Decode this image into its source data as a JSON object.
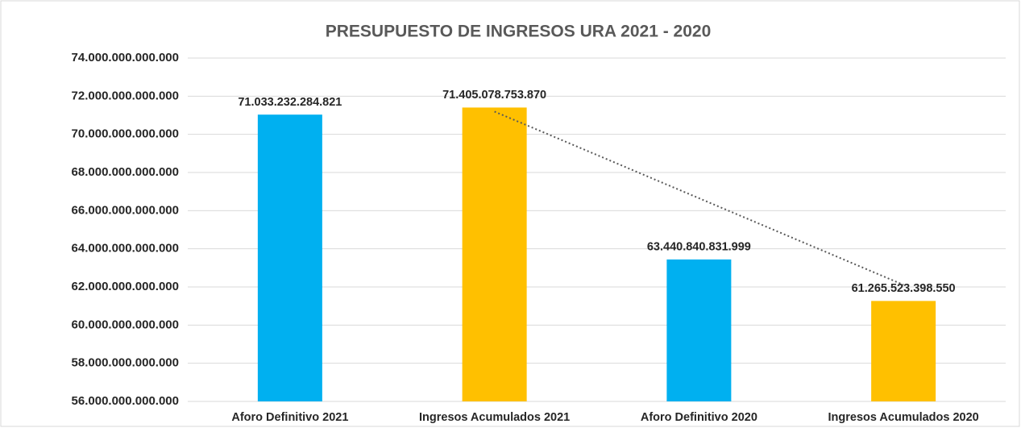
{
  "chart_data": {
    "type": "bar",
    "title": "PRESUPUESTO DE INGRESOS URA 2021 - 2020",
    "categories": [
      "Aforo Definitivo 2021",
      "Ingresos Acumulados 2021",
      "Aforo Definitivo 2020",
      "Ingresos Acumulados 2020"
    ],
    "values": [
      71033232284821,
      71405078753870,
      63440840831999,
      61265523398550
    ],
    "value_labels": [
      "71.033.232.284.821",
      "71.405.078.753.870",
      "63.440.840.831.999",
      "61.265.523.398.550"
    ],
    "colors": [
      "#00b0f0",
      "#ffc000",
      "#00b0f0",
      "#ffc000"
    ],
    "ylim": [
      56000000000000,
      74000000000000
    ],
    "yticks": [
      {
        "value": 56000000000000,
        "label": "56.000.000.000.000"
      },
      {
        "value": 58000000000000,
        "label": "58.000.000.000.000"
      },
      {
        "value": 60000000000000,
        "label": "60.000.000.000.000"
      },
      {
        "value": 62000000000000,
        "label": "62.000.000.000.000"
      },
      {
        "value": 64000000000000,
        "label": "64.000.000.000.000"
      },
      {
        "value": 66000000000000,
        "label": "66.000.000.000.000"
      },
      {
        "value": 68000000000000,
        "label": "68.000.000.000.000"
      },
      {
        "value": 70000000000000,
        "label": "70.000.000.000.000"
      },
      {
        "value": 72000000000000,
        "label": "72.000.000.000.000"
      },
      {
        "value": 74000000000000,
        "label": "74.000.000.000.000"
      }
    ],
    "grid": true
  }
}
